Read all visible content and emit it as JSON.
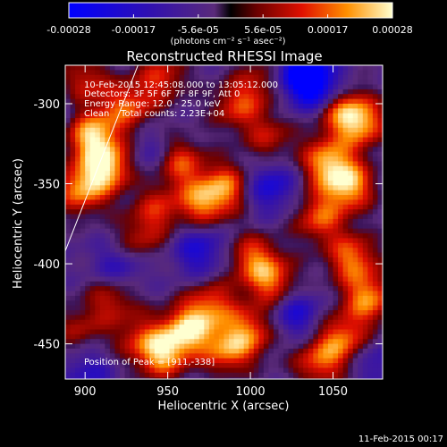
{
  "chart_data": {
    "type": "heatmap",
    "title": "Reconstructed RHESSI Image",
    "xlabel": "Heliocentric X (arcsec)",
    "ylabel": "Heliocentric Y (arcsec)",
    "xlim": [
      888,
      1080
    ],
    "ylim": [
      -472,
      -276
    ],
    "x_ticks": [
      900,
      950,
      1000,
      1050
    ],
    "y_ticks": [
      -300,
      -350,
      -400,
      -450
    ],
    "colorbar": {
      "min": -0.00028,
      "max": 0.00028,
      "ticks": [
        "-0.00028",
        "-0.00017",
        "-5.6e-05",
        "5.6e-05",
        "0.00017",
        "0.00028"
      ],
      "units": "(photons cm⁻² s⁻¹ asec⁻²)"
    },
    "annotations": [
      "10-Feb-2015 12:45:08.000 to 13:05:12.000",
      "Detectors: 3F 5F 6F 7F 8F 9F, Att 0",
      "Energy Range: 12.0 - 25.0 keV",
      "Clean    Total counts: 2.23E+04"
    ],
    "peak_label": "Position of Peak = [911,-338]",
    "peak": [
      911,
      -338
    ],
    "limb_line": [
      [
        888,
        -392
      ],
      [
        932,
        -276
      ]
    ],
    "blobs": [
      {
        "x": 903,
        "y": -318,
        "v": 1.0
      },
      {
        "x": 912,
        "y": -338,
        "v": 1.0
      },
      {
        "x": 896,
        "y": -352,
        "v": 0.85
      },
      {
        "x": 925,
        "y": -300,
        "v": 0.7
      },
      {
        "x": 945,
        "y": -282,
        "v": 0.6
      },
      {
        "x": 898,
        "y": -285,
        "v": 0.6
      },
      {
        "x": 955,
        "y": -335,
        "v": 0.75
      },
      {
        "x": 970,
        "y": -360,
        "v": 0.8
      },
      {
        "x": 985,
        "y": -350,
        "v": 0.7
      },
      {
        "x": 942,
        "y": -365,
        "v": 0.55
      },
      {
        "x": 930,
        "y": -385,
        "v": 0.5
      },
      {
        "x": 990,
        "y": -300,
        "v": 0.6
      },
      {
        "x": 1010,
        "y": -320,
        "v": 0.5
      },
      {
        "x": 1005,
        "y": -285,
        "v": 0.45
      },
      {
        "x": 1050,
        "y": -300,
        "v": 0.85
      },
      {
        "x": 1065,
        "y": -310,
        "v": 0.95
      },
      {
        "x": 1045,
        "y": -335,
        "v": 0.9
      },
      {
        "x": 1058,
        "y": -350,
        "v": 0.95
      },
      {
        "x": 1040,
        "y": -370,
        "v": 0.7
      },
      {
        "x": 1000,
        "y": -395,
        "v": 0.7
      },
      {
        "x": 1012,
        "y": -410,
        "v": 0.75
      },
      {
        "x": 975,
        "y": -425,
        "v": 0.7
      },
      {
        "x": 960,
        "y": -440,
        "v": 0.95
      },
      {
        "x": 945,
        "y": -455,
        "v": 0.9
      },
      {
        "x": 985,
        "y": -452,
        "v": 0.8
      },
      {
        "x": 1000,
        "y": -440,
        "v": 0.65
      },
      {
        "x": 1060,
        "y": -395,
        "v": 0.8
      },
      {
        "x": 1070,
        "y": -420,
        "v": 0.85
      },
      {
        "x": 1055,
        "y": -445,
        "v": 0.75
      },
      {
        "x": 1040,
        "y": -460,
        "v": 0.7
      },
      {
        "x": 915,
        "y": -420,
        "v": 0.55
      },
      {
        "x": 930,
        "y": -445,
        "v": 0.45
      },
      {
        "x": 895,
        "y": -440,
        "v": 0.45
      },
      {
        "x": 1030,
        "y": -280,
        "v": -1.0
      },
      {
        "x": 1042,
        "y": -292,
        "v": -0.85
      },
      {
        "x": 1010,
        "y": -350,
        "v": -0.6
      },
      {
        "x": 968,
        "y": -390,
        "v": -0.55
      },
      {
        "x": 920,
        "y": -400,
        "v": -0.5
      },
      {
        "x": 1025,
        "y": -430,
        "v": -0.55
      },
      {
        "x": 940,
        "y": -330,
        "v": -0.35
      },
      {
        "x": 900,
        "y": -465,
        "v": -0.4
      },
      {
        "x": 1075,
        "y": -460,
        "v": -0.35
      },
      {
        "x": 880,
        "y": -300,
        "v": -0.3
      }
    ]
  },
  "footer_timestamp": "11-Feb-2015 00:17"
}
